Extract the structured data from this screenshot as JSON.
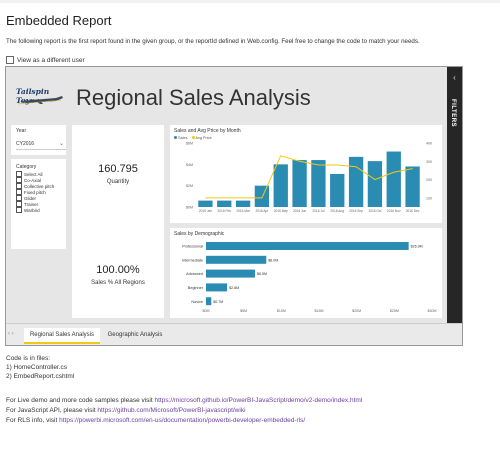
{
  "page": {
    "title": "Embedded Report",
    "intro": "The following report is the first report found in the given group, or the reportId defined in Web.config. Feel free to change the code to match your needs.",
    "view_as_user": "View as a different user"
  },
  "report": {
    "logo_text": "Tailspin Toys",
    "title": "Regional Sales Analysis",
    "filters_label": "FILTERS",
    "year_slicer": {
      "label": "Year",
      "value": "CY2016"
    },
    "category_slicer": {
      "label": "Category",
      "items": [
        "Select All",
        "Co-Axial",
        "Collective pitch",
        "Fixed pitch",
        "Glider",
        "Trainer",
        "Warbird"
      ]
    },
    "kpi_quantity": {
      "value": "160.795",
      "label": "Quantity"
    },
    "kpi_regions": {
      "value": "100.00%",
      "label": "Sales % All Regions"
    }
  },
  "chart_data": [
    {
      "type": "bar",
      "title": "Sales and Avg Price by Month",
      "legend": [
        "Sales",
        "Avg Price"
      ],
      "categories": [
        "2016 Jan",
        "2016 Feb",
        "2016 Mar",
        "2016 Apr",
        "2016 May",
        "2016 Jun",
        "2016 Jul",
        "2016 Aug",
        "2016 Sep",
        "2016 Oct",
        "2016 Nov",
        "2016 Dec"
      ],
      "series": [
        {
          "name": "Sales",
          "values": [
            0.6,
            0.6,
            0.6,
            2.0,
            4.0,
            4.4,
            4.4,
            3.1,
            4.7,
            4.3,
            5.2,
            3.8
          ],
          "color": "#2b8cb3"
        },
        {
          "name": "Avg Price",
          "values": [
            100,
            100,
            100,
            100,
            330,
            300,
            280,
            280,
            270,
            200,
            240,
            260
          ],
          "color": "#f2c811"
        }
      ],
      "y_ticks": [
        "$0M",
        "$2M",
        "$4M",
        "$6M"
      ],
      "y2_ticks": [
        "100",
        "200",
        "300",
        "400"
      ]
    },
    {
      "type": "bar",
      "title": "Sales by Demographic",
      "categories": [
        "Professional",
        "Intermediate",
        "Advanced",
        "Beginner",
        "Novice"
      ],
      "values": [
        26.9,
        8.0,
        6.5,
        2.8,
        0.7
      ],
      "data_labels": [
        "$26.9M",
        "$8.0M",
        "$6.5M",
        "$2.8M",
        "$0.7M"
      ],
      "x_ticks": [
        "$0M",
        "$5M",
        "$10M",
        "$15M",
        "$20M",
        "$25M",
        "$30M"
      ],
      "xlim": [
        0,
        30
      ],
      "color": "#2b8cb3"
    }
  ],
  "tabs": [
    "Regional Sales Analysis",
    "Geographic Analysis"
  ],
  "code": {
    "header": "Code is in files:",
    "files": [
      "1) HomeController.cs",
      "2) EmbedReport.cshtml"
    ],
    "live_demo_prefix": "For Live demo and more code samples please visit ",
    "live_demo_url": "https://microsoft.github.io/PowerBI-JavaScript/demo/v2-demo/index.html",
    "api_prefix": "For JavaScript API, please visit ",
    "api_url": "https://github.com/Microsoft/PowerBI-javascript/wiki",
    "rls_prefix": "For RLS info, visit ",
    "rls_url": "https://powerbi.microsoft.com/en-us/documentation/powerbi-developer-embedded-rls/"
  }
}
